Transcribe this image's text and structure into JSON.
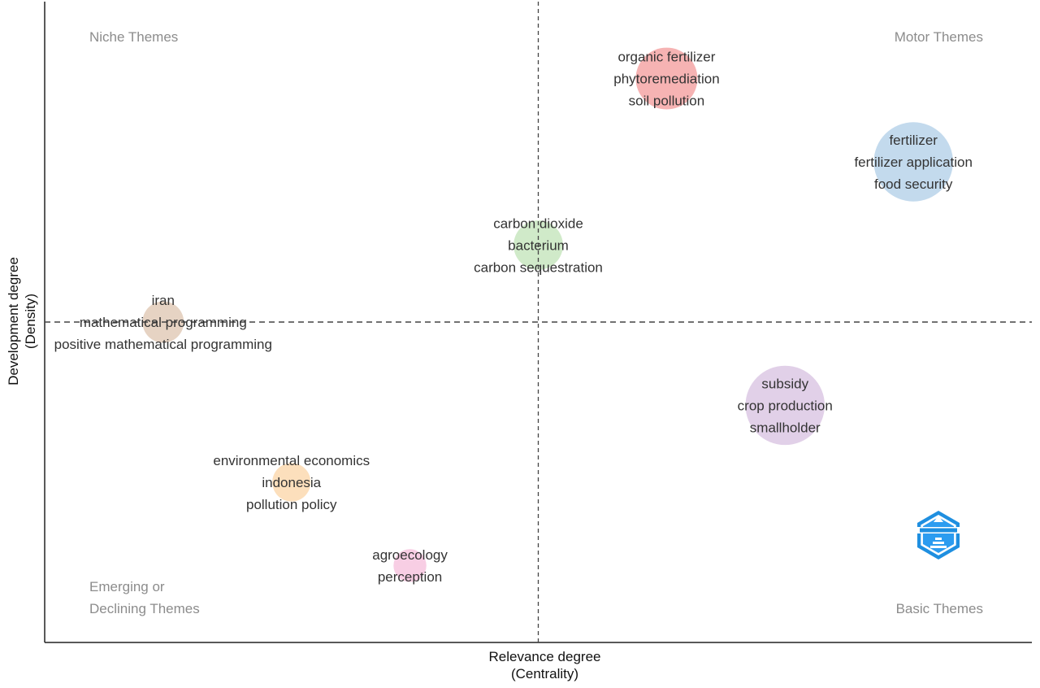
{
  "chart_data": {
    "type": "scatter",
    "subtype": "thematic-map",
    "xlabel": "Relevance degree\n(Centrality)",
    "ylabel": "Development degree\n(Density)",
    "xlabel_lines": [
      "Relevance degree",
      "(Centrality)"
    ],
    "ylabel_lines": [
      "Development degree",
      "(Density)"
    ],
    "x_range": [
      0,
      1
    ],
    "y_range": [
      0,
      1
    ],
    "x_split": 0.5,
    "y_split": 0.5,
    "grid": false,
    "quadrants": {
      "top_left": [
        "Niche Themes"
      ],
      "top_right": [
        "Motor Themes"
      ],
      "bottom_left": [
        "Emerging or",
        "Declining Themes"
      ],
      "bottom_right": [
        "Basic Themes"
      ]
    },
    "series": [
      {
        "labels": [
          "organic fertilizer",
          "phytoremediation",
          "soil pollution"
        ],
        "x": 0.63,
        "y": 0.88,
        "size": 3,
        "color": "#f4a6a6"
      },
      {
        "labels": [
          "fertilizer",
          "fertilizer application",
          "food security"
        ],
        "x": 0.88,
        "y": 0.75,
        "size": 6,
        "color": "#b8d3ea"
      },
      {
        "labels": [
          "carbon dioxide",
          "bacterium",
          "carbon sequestration"
        ],
        "x": 0.5,
        "y": 0.62,
        "size": 1.5,
        "color": "#c8e6c0"
      },
      {
        "labels": [
          "iran",
          "mathematical programming",
          "positive mathematical programming"
        ],
        "x": 0.12,
        "y": 0.5,
        "size": 0.8,
        "color": "#e2cbb8"
      },
      {
        "labels": [
          "subsidy",
          "crop production",
          "smallholder"
        ],
        "x": 0.75,
        "y": 0.37,
        "size": 6,
        "color": "#dcc8e4"
      },
      {
        "labels": [
          "environmental economics",
          "indonesia",
          "pollution policy"
        ],
        "x": 0.25,
        "y": 0.25,
        "size": 0.6,
        "color": "#fbd9b0"
      },
      {
        "labels": [
          "agroecology",
          "perception"
        ],
        "x": 0.37,
        "y": 0.12,
        "size": 0.3,
        "color": "#f7c6df"
      }
    ],
    "logo_icon": "bibliometrix-logo-icon"
  }
}
